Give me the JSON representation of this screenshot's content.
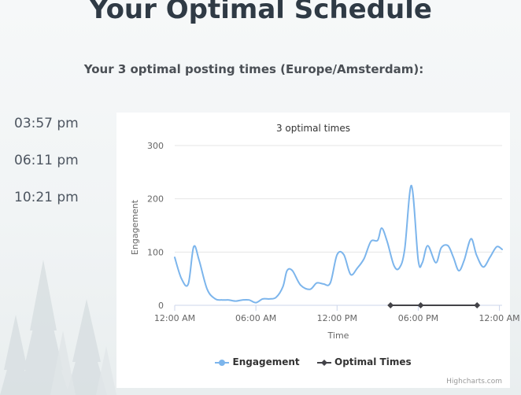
{
  "page": {
    "title": "Your Optimal Schedule",
    "subtitle": "Your 3 optimal posting times (Europe/Amsterdam):"
  },
  "optimal_times": [
    "03:57 pm",
    "06:11 pm",
    "10:21 pm"
  ],
  "chart_data": {
    "type": "line",
    "title": "3 optimal times",
    "xlabel": "Time",
    "ylabel": "Engagement",
    "x_tick_labels": [
      "12:00 AM",
      "06:00 AM",
      "12:00 PM",
      "06:00 PM",
      "12:00 AM"
    ],
    "x_ticks_hours": [
      0,
      6,
      12,
      18,
      24
    ],
    "xlim_hours": [
      0,
      24.2
    ],
    "ylim": [
      0,
      300
    ],
    "y_ticks": [
      0,
      100,
      200,
      300
    ],
    "grid": true,
    "legend_position": "bottom",
    "series": [
      {
        "name": "Engagement",
        "color": "#7cb5ec",
        "x_hours": [
          0,
          0.5,
          1,
          1.4,
          1.8,
          2.4,
          3,
          3.5,
          4,
          4.5,
          5,
          5.5,
          6,
          6.5,
          7,
          7.5,
          8,
          8.3,
          8.7,
          9.3,
          10,
          10.5,
          11,
          11.5,
          12,
          12.5,
          13,
          13.5,
          14,
          14.5,
          15,
          15.3,
          15.7,
          16.2,
          16.6,
          17,
          17.5,
          18,
          18.3,
          18.7,
          19.3,
          19.7,
          20.2,
          20.6,
          21,
          21.4,
          21.9,
          22.3,
          22.8,
          23.3,
          23.8,
          24.2
        ],
        "values": [
          90,
          50,
          40,
          110,
          85,
          30,
          12,
          10,
          10,
          8,
          10,
          10,
          5,
          12,
          12,
          15,
          35,
          65,
          65,
          38,
          30,
          42,
          40,
          42,
          95,
          95,
          58,
          70,
          88,
          120,
          122,
          145,
          120,
          75,
          70,
          105,
          225,
          85,
          80,
          112,
          80,
          108,
          112,
          90,
          65,
          85,
          125,
          95,
          72,
          90,
          110,
          105
        ]
      },
      {
        "name": "Optimal Times",
        "color": "#434348",
        "x_hours": [
          15.95,
          18.18,
          22.35
        ],
        "values": [
          0,
          0,
          0
        ]
      }
    ],
    "credits": "Highcharts.com"
  }
}
